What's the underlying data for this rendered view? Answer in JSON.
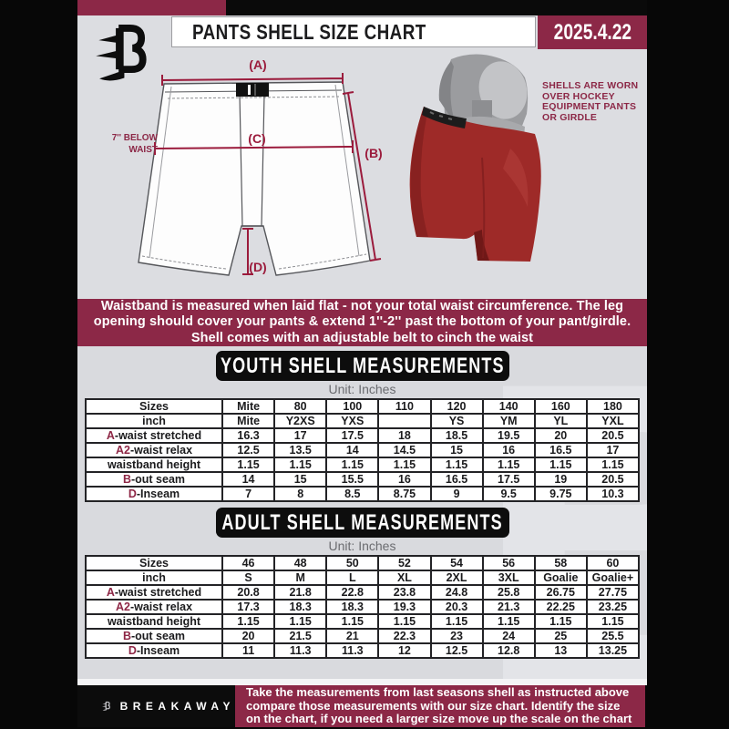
{
  "colors": {
    "maroon": "#8c2847",
    "crimson_label": "#9b1b3c",
    "black": "#0a0a0a",
    "sheet_gray": "#dcdde1",
    "table_line": "#232326",
    "shell_red": "#9e2a28"
  },
  "header": {
    "title": "PANTS SHELL SIZE CHART",
    "date": "2025.4.22"
  },
  "diagram": {
    "label_a": "(A)",
    "label_b": "(B)",
    "label_c": "(C)",
    "label_d": "(D)",
    "below_waist": [
      "7'' BELOW",
      "WAIST"
    ],
    "caption": [
      "SHELLS ARE WORN",
      "OVER HOCKEY",
      "EQUIPMENT PANTS",
      "OR GIRDLE"
    ]
  },
  "notice": [
    "Waistband is measured when laid flat - not your total waist circumference. The leg",
    "opening should cover your pants & extend 1''-2'' past the bottom of your pant/girdle.",
    "Shell comes with an adjustable belt to cinch the waist"
  ],
  "youth": {
    "heading": "YOUTH SHELL MEASUREMENTS",
    "unit": "Unit: Inches",
    "columns": [
      "Sizes",
      "Mite",
      "80",
      "100",
      "110",
      "120",
      "140",
      "160",
      "180"
    ],
    "rows": [
      {
        "prefix": "",
        "label": "inch",
        "values": [
          "Mite",
          "Y2XS",
          "YXS",
          "",
          "YS",
          "YM",
          "YL",
          "YXL"
        ]
      },
      {
        "prefix": "A",
        "label": "-waist stretched",
        "values": [
          "16.3",
          "17",
          "17.5",
          "18",
          "18.5",
          "19.5",
          "20",
          "20.5"
        ]
      },
      {
        "prefix": "A2",
        "label": "-waist relax",
        "values": [
          "12.5",
          "13.5",
          "14",
          "14.5",
          "15",
          "16",
          "16.5",
          "17"
        ]
      },
      {
        "prefix": "",
        "label": "waistband height",
        "values": [
          "1.15",
          "1.15",
          "1.15",
          "1.15",
          "1.15",
          "1.15",
          "1.15",
          "1.15"
        ]
      },
      {
        "prefix": "B",
        "label": "-out seam",
        "values": [
          "14",
          "15",
          "15.5",
          "16",
          "16.5",
          "17.5",
          "19",
          "20.5"
        ]
      },
      {
        "prefix": "D",
        "label": "-Inseam",
        "values": [
          "7",
          "8",
          "8.5",
          "8.75",
          "9",
          "9.5",
          "9.75",
          "10.3"
        ]
      }
    ]
  },
  "adult": {
    "heading": "ADULT SHELL MEASUREMENTS",
    "unit": "Unit: Inches",
    "columns": [
      "Sizes",
      "46",
      "48",
      "50",
      "52",
      "54",
      "56",
      "58",
      "60"
    ],
    "rows": [
      {
        "prefix": "",
        "label": "inch",
        "values": [
          "S",
          "M",
          "L",
          "XL",
          "2XL",
          "3XL",
          "Goalie",
          "Goalie+"
        ]
      },
      {
        "prefix": "A",
        "label": "-waist stretched",
        "values": [
          "20.8",
          "21.8",
          "22.8",
          "23.8",
          "24.8",
          "25.8",
          "26.75",
          "27.75"
        ]
      },
      {
        "prefix": "A2",
        "label": "-waist relax",
        "values": [
          "17.3",
          "18.3",
          "18.3",
          "19.3",
          "20.3",
          "21.3",
          "22.25",
          "23.25"
        ]
      },
      {
        "prefix": "",
        "label": "waistband height",
        "values": [
          "1.15",
          "1.15",
          "1.15",
          "1.15",
          "1.15",
          "1.15",
          "1.15",
          "1.15"
        ]
      },
      {
        "prefix": "B",
        "label": "-out seam",
        "values": [
          "20",
          "21.5",
          "21",
          "22.3",
          "23",
          "24",
          "25",
          "25.5"
        ]
      },
      {
        "prefix": "D",
        "label": "-Inseam",
        "values": [
          "11",
          "11.3",
          "11.3",
          "12",
          "12.5",
          "12.8",
          "13",
          "13.25"
        ]
      }
    ]
  },
  "footer": {
    "brand": "BREAKAWAY",
    "note": [
      "Take the measurements from last seasons shell as instructed above",
      "compare those measurements  with our size chart. Identify the size",
      "on the chart, if you need a larger size move up the scale on the chart"
    ]
  },
  "watermark": "B"
}
